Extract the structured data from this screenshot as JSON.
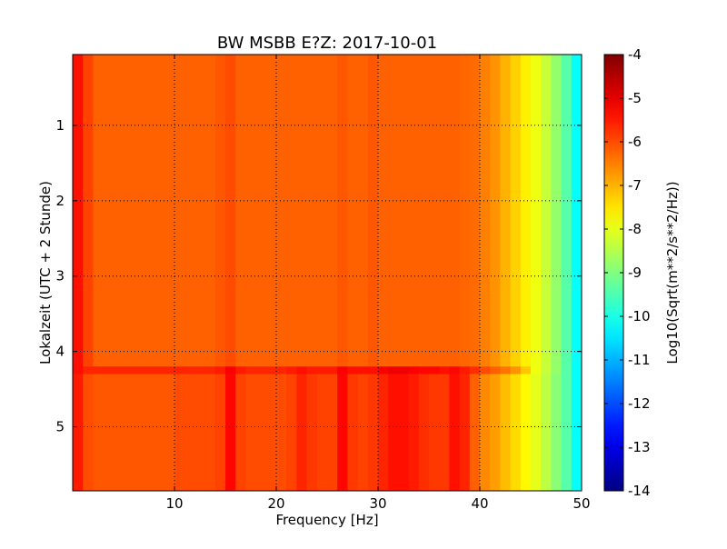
{
  "chart_data": {
    "type": "heatmap",
    "title": "BW MSBB E?Z: 2017-10-01",
    "xlabel": "Frequency [Hz]",
    "ylabel": "Lokalzeit (UTC + 2 Stunde)",
    "xlim": [
      0,
      50
    ],
    "ylim": [
      0.06,
      5.85
    ],
    "y_inverted": true,
    "grid": true,
    "xticks": [
      "10",
      "20",
      "30",
      "40",
      "50"
    ],
    "xtick_values": [
      10,
      20,
      30,
      40,
      50
    ],
    "yticks": [
      "1",
      "2",
      "3",
      "4",
      "5"
    ],
    "ytick_values": [
      1,
      2,
      3,
      4,
      5
    ],
    "colormap": "jet",
    "colorbar": {
      "label": "Log10(Sqrt(m**2/s**2/Hz))",
      "range": [
        -14,
        -4
      ],
      "ticks": [
        "-4",
        "-5",
        "-6",
        "-7",
        "-8",
        "-9",
        "-10",
        "-11",
        "-12",
        "-13",
        "-14"
      ],
      "tick_values": [
        -4,
        -5,
        -6,
        -7,
        -8,
        -9,
        -10,
        -11,
        -12,
        -13,
        -14
      ]
    },
    "freq_bin_width_hz": 1,
    "time_segments": [
      {
        "start": 0.06,
        "end": 4.2,
        "profile": "before"
      },
      {
        "start": 4.2,
        "end": 4.3,
        "profile": "transition"
      },
      {
        "start": 4.3,
        "end": 5.85,
        "profile": "after"
      }
    ],
    "profiles": {
      "before": [
        -5.4,
        -5.9,
        -6.2,
        -6.2,
        -6.2,
        -6.2,
        -6.2,
        -6.2,
        -6.2,
        -6.2,
        -6.2,
        -6.2,
        -6.2,
        -6.2,
        -6.1,
        -6.0,
        -6.2,
        -6.2,
        -6.2,
        -6.2,
        -6.2,
        -6.2,
        -6.2,
        -6.2,
        -6.2,
        -6.2,
        -6.1,
        -6.2,
        -6.2,
        -6.1,
        -6.2,
        -6.2,
        -6.2,
        -6.2,
        -6.2,
        -6.2,
        -6.2,
        -6.2,
        -6.25,
        -6.3,
        -6.5,
        -6.7,
        -7.0,
        -7.3,
        -7.6,
        -7.9,
        -8.3,
        -8.8,
        -9.4,
        -10.2
      ],
      "transition": [
        -5.4,
        -5.6,
        -5.6,
        -5.6,
        -5.6,
        -5.6,
        -5.6,
        -5.6,
        -5.6,
        -5.6,
        -5.6,
        -5.6,
        -5.6,
        -5.6,
        -5.5,
        -5.2,
        -5.5,
        -5.6,
        -5.6,
        -5.6,
        -5.6,
        -5.5,
        -5.4,
        -5.5,
        -5.5,
        -5.5,
        -5.2,
        -5.4,
        -5.4,
        -5.4,
        -5.2,
        -5.1,
        -5.1,
        -5.2,
        -5.3,
        -5.3,
        -5.4,
        -5.3,
        -5.5,
        -5.7,
        -6.0,
        -6.2,
        -6.4,
        -6.7,
        -7.2,
        -7.9,
        -8.3,
        -8.8,
        -9.4,
        -10.2
      ],
      "after": [
        -5.5,
        -6.0,
        -6.1,
        -6.1,
        -6.1,
        -6.1,
        -6.1,
        -6.1,
        -6.1,
        -6.1,
        -6.0,
        -6.0,
        -6.0,
        -6.0,
        -5.9,
        -5.3,
        -5.9,
        -6.0,
        -6.0,
        -6.0,
        -6.0,
        -5.9,
        -5.6,
        -5.8,
        -5.9,
        -5.9,
        -5.3,
        -5.8,
        -5.9,
        -5.8,
        -5.6,
        -5.4,
        -5.4,
        -5.5,
        -5.7,
        -5.8,
        -5.8,
        -5.4,
        -5.6,
        -6.2,
        -6.6,
        -6.8,
        -7.1,
        -7.4,
        -7.7,
        -8.0,
        -8.4,
        -8.9,
        -9.4,
        -10.2
      ]
    }
  }
}
